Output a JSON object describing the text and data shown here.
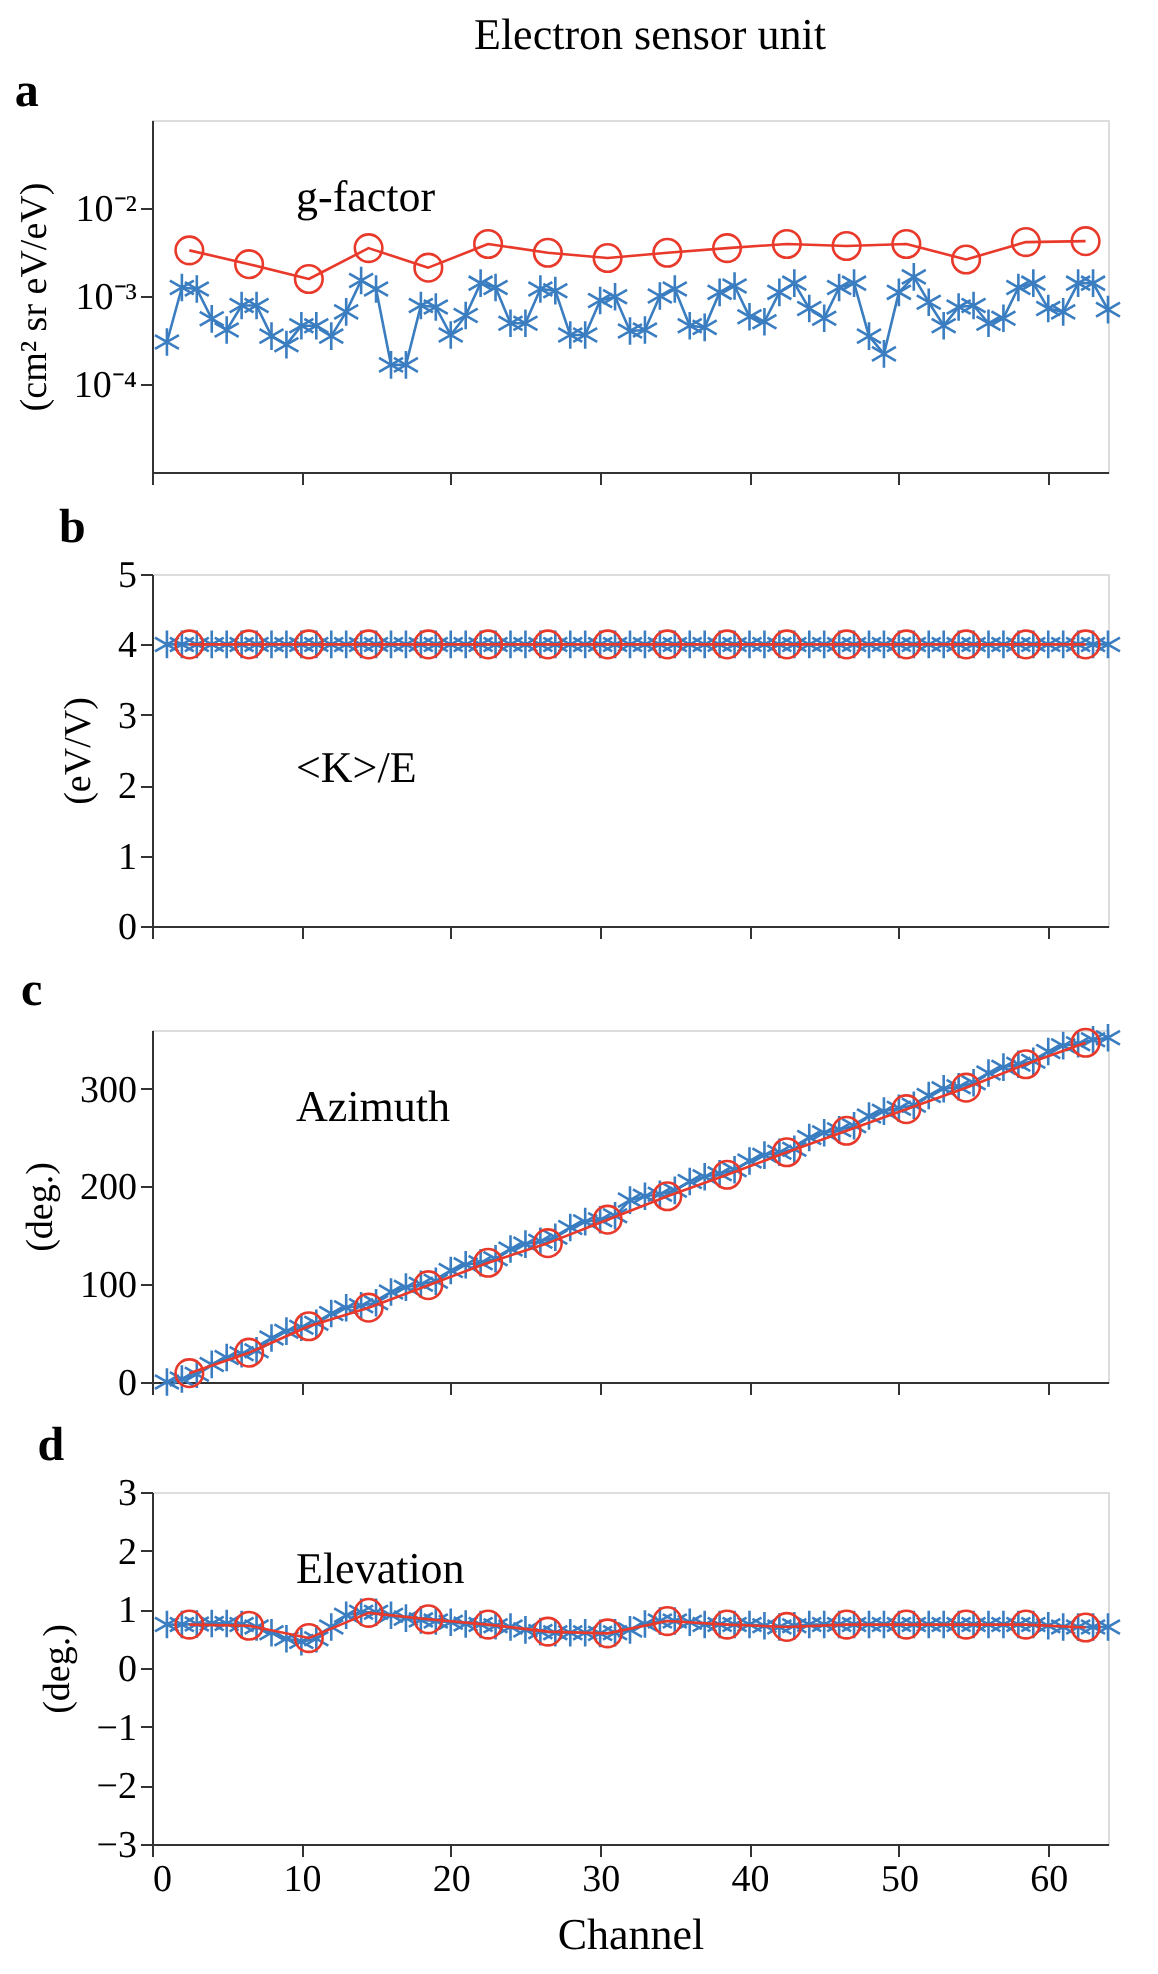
{
  "chart_data": [
    {
      "type": "line",
      "title": "a",
      "ylabel": "(cm² sr eV/eV)",
      "annotations": [
        "g-factor",
        "Electron sensor unit"
      ],
      "log": "y",
      "ylim": [
        1e-05,
        0.1
      ],
      "yticks": [
        {
          "value": 0.0001,
          "label": "10⁻⁴"
        },
        {
          "value": 0.001,
          "label": "10⁻³"
        },
        {
          "value": 0.01,
          "label": "10⁻²"
        }
      ],
      "xlim": [
        0,
        64
      ],
      "xticks": [
        0,
        10,
        20,
        30,
        40,
        50,
        60
      ],
      "tick_labels": "y",
      "grid": false,
      "legend": false,
      "series": [
        {
          "color": "#3a7dc0",
          "marker": "cross",
          "x": [
            1,
            2,
            3,
            4,
            5,
            6,
            7,
            8,
            9,
            10,
            11,
            12,
            13,
            14,
            15,
            16,
            17,
            18,
            19,
            20,
            21,
            22,
            23,
            24,
            25,
            26,
            27,
            28,
            29,
            30,
            31,
            32,
            33,
            34,
            35,
            36,
            37,
            38,
            39,
            40,
            41,
            42,
            43,
            44,
            45,
            46,
            47,
            48,
            49,
            50,
            51,
            52,
            53,
            54,
            55,
            56,
            57,
            58,
            59,
            60,
            61,
            62,
            63,
            64
          ],
          "values": [
            0.0003,
            0.00125,
            0.0012,
            0.00055,
            0.00041,
            0.00078,
            0.00078,
            0.00035,
            0.00028,
            0.00046,
            0.00046,
            0.00035,
            0.00066,
            0.0015,
            0.0012,
            0.000165,
            0.000165,
            0.00078,
            0.00075,
            0.00036,
            0.0006,
            0.0014,
            0.00125,
            0.00049,
            0.00049,
            0.0012,
            0.00115,
            0.00036,
            0.00036,
            0.00089,
            0.00098,
            0.0004,
            0.00041,
            0.001,
            0.0012,
            0.00046,
            0.00044,
            0.0011,
            0.0013,
            0.00058,
            0.00051,
            0.0011,
            0.0014,
            0.00072,
            0.00056,
            0.00125,
            0.0014,
            0.00035,
            0.00022,
            0.0011,
            0.00165,
            0.00085,
            0.00046,
            0.00075,
            0.00078,
            0.00049,
            0.00056,
            0.00125,
            0.0014,
            0.00072,
            0.00066,
            0.0014,
            0.0014,
            0.0007
          ]
        },
        {
          "color": "#e8392b",
          "marker": "circle",
          "x": [
            2.5,
            6.5,
            10.5,
            14.5,
            18.5,
            22.5,
            26.5,
            30.5,
            34.5,
            38.5,
            42.5,
            46.5,
            50.5,
            54.5,
            58.5,
            62.5
          ],
          "values": [
            0.0033,
            0.0023,
            0.00156,
            0.0035,
            0.0021,
            0.0039,
            0.0031,
            0.0027,
            0.0031,
            0.0035,
            0.0039,
            0.0037,
            0.0039,
            0.0026,
            0.0041,
            0.0042
          ]
        }
      ]
    },
    {
      "type": "line",
      "title": "b",
      "ylabel": "(eV/V)",
      "annotations": [
        "<K>/E"
      ],
      "ylim": [
        0,
        5
      ],
      "yticks": [
        0,
        1,
        2,
        3,
        4,
        5
      ],
      "xlim": [
        0,
        64
      ],
      "xticks": [
        0,
        10,
        20,
        30,
        40,
        50,
        60
      ],
      "tick_labels": "y",
      "grid": false,
      "legend": false,
      "series": [
        {
          "color": "#3a7dc0",
          "marker": "cross",
          "x": [
            1,
            2,
            3,
            4,
            5,
            6,
            7,
            8,
            9,
            10,
            11,
            12,
            13,
            14,
            15,
            16,
            17,
            18,
            19,
            20,
            21,
            22,
            23,
            24,
            25,
            26,
            27,
            28,
            29,
            30,
            31,
            32,
            33,
            34,
            35,
            36,
            37,
            38,
            39,
            40,
            41,
            42,
            43,
            44,
            45,
            46,
            47,
            48,
            49,
            50,
            51,
            52,
            53,
            54,
            55,
            56,
            57,
            58,
            59,
            60,
            61,
            62,
            63,
            64
          ],
          "values": [
            4,
            4,
            4,
            4,
            4,
            4,
            4,
            4,
            4,
            4,
            4,
            4,
            4,
            4,
            4,
            4,
            4,
            4,
            4,
            4,
            4,
            4,
            4,
            4,
            4,
            4,
            4,
            4,
            4,
            4,
            4,
            4,
            4,
            4,
            4,
            4,
            4,
            4,
            4,
            4,
            4,
            4,
            4,
            4,
            4,
            4,
            4,
            4,
            4,
            4,
            4,
            4,
            4,
            4,
            4,
            4,
            4,
            4,
            4,
            4,
            4,
            4,
            4,
            4
          ]
        },
        {
          "color": "#e8392b",
          "marker": "circle",
          "x": [
            2.5,
            6.5,
            10.5,
            14.5,
            18.5,
            22.5,
            26.5,
            30.5,
            34.5,
            38.5,
            42.5,
            46.5,
            50.5,
            54.5,
            58.5,
            62.5
          ],
          "values": [
            4,
            4,
            4,
            4,
            4,
            4,
            4,
            4,
            4,
            4,
            4,
            4,
            4,
            4,
            4,
            4
          ]
        }
      ]
    },
    {
      "type": "line",
      "title": "c",
      "ylabel": "(deg.)",
      "annotations": [
        "Azimuth"
      ],
      "ylim": [
        0,
        360
      ],
      "yticks": [
        0,
        100,
        200,
        300
      ],
      "xlim": [
        0,
        64
      ],
      "xticks": [
        0,
        10,
        20,
        30,
        40,
        50,
        60
      ],
      "tick_labels": "y",
      "grid": false,
      "legend": false,
      "series": [
        {
          "color": "#3a7dc0",
          "marker": "cross",
          "x": [
            1,
            2,
            3,
            4,
            5,
            6,
            7,
            8,
            9,
            10,
            11,
            12,
            13,
            14,
            15,
            16,
            17,
            18,
            19,
            20,
            21,
            22,
            23,
            24,
            25,
            26,
            27,
            28,
            29,
            30,
            31,
            32,
            33,
            34,
            35,
            36,
            37,
            38,
            39,
            40,
            41,
            42,
            43,
            44,
            45,
            46,
            47,
            48,
            49,
            50,
            51,
            52,
            53,
            54,
            55,
            56,
            57,
            58,
            59,
            60,
            61,
            62,
            63,
            64
          ],
          "values": [
            0,
            3,
            8,
            18,
            25,
            29,
            32,
            45,
            52,
            56,
            60,
            70,
            76,
            78,
            81,
            92,
            97,
            100,
            103,
            114,
            120,
            122,
            126,
            136,
            141,
            144,
            148,
            158,
            164,
            166,
            170,
            186,
            190,
            192,
            196,
            205,
            210,
            213,
            217,
            226,
            232,
            235,
            238,
            250,
            255,
            258,
            262,
            272,
            277,
            280,
            283,
            293,
            300,
            302,
            306,
            316,
            322,
            325,
            328,
            338,
            344,
            346,
            350,
            352
          ]
        },
        {
          "color": "#e8392b",
          "marker": "circle",
          "x": [
            2.5,
            6.5,
            10.5,
            14.5,
            18.5,
            22.5,
            26.5,
            30.5,
            34.5,
            38.5,
            42.5,
            46.5,
            50.5,
            54.5,
            58.5,
            62.5
          ],
          "values": [
            9,
            30,
            57,
            76,
            99,
            122,
            142,
            166,
            190,
            212,
            235,
            257,
            279,
            301,
            325,
            347
          ]
        }
      ]
    },
    {
      "type": "line",
      "title": "d",
      "ylabel": "(deg.)",
      "xlabel": "Channel",
      "annotations": [
        "Elevation"
      ],
      "ylim": [
        -3,
        3
      ],
      "yticks": [
        -3,
        -2,
        -1,
        0,
        1,
        2,
        3
      ],
      "xlim": [
        0,
        64
      ],
      "xticks": [
        0,
        10,
        20,
        30,
        40,
        50,
        60
      ],
      "grid": false,
      "legend": false,
      "series": [
        {
          "color": "#3a7dc0",
          "marker": "cross",
          "x": [
            1,
            2,
            3,
            4,
            5,
            6,
            7,
            8,
            9,
            10,
            11,
            12,
            13,
            14,
            15,
            16,
            17,
            18,
            19,
            20,
            21,
            22,
            23,
            24,
            25,
            26,
            27,
            28,
            29,
            30,
            31,
            32,
            33,
            34,
            35,
            36,
            37,
            38,
            39,
            40,
            41,
            42,
            43,
            44,
            45,
            46,
            47,
            48,
            49,
            50,
            51,
            52,
            53,
            54,
            55,
            56,
            57,
            58,
            59,
            60,
            61,
            62,
            63,
            64
          ],
          "values": [
            0.74,
            0.74,
            0.75,
            0.76,
            0.76,
            0.74,
            0.7,
            0.6,
            0.5,
            0.45,
            0.5,
            0.7,
            0.9,
            0.95,
            0.95,
            0.9,
            0.85,
            0.82,
            0.8,
            0.78,
            0.75,
            0.74,
            0.72,
            0.7,
            0.65,
            0.62,
            0.6,
            0.6,
            0.6,
            0.59,
            0.6,
            0.65,
            0.75,
            0.8,
            0.8,
            0.78,
            0.74,
            0.74,
            0.74,
            0.74,
            0.72,
            0.7,
            0.72,
            0.74,
            0.74,
            0.74,
            0.74,
            0.74,
            0.74,
            0.74,
            0.74,
            0.74,
            0.74,
            0.74,
            0.74,
            0.74,
            0.74,
            0.74,
            0.74,
            0.72,
            0.7,
            0.7,
            0.7,
            0.7
          ]
        },
        {
          "color": "#e8392b",
          "marker": "circle",
          "x": [
            2.5,
            6.5,
            10.5,
            14.5,
            18.5,
            22.5,
            26.5,
            30.5,
            34.5,
            38.5,
            42.5,
            46.5,
            50.5,
            54.5,
            58.5,
            62.5
          ],
          "values": [
            0.74,
            0.72,
            0.51,
            0.94,
            0.83,
            0.74,
            0.62,
            0.59,
            0.8,
            0.74,
            0.7,
            0.74,
            0.74,
            0.74,
            0.74,
            0.69
          ]
        }
      ]
    }
  ]
}
